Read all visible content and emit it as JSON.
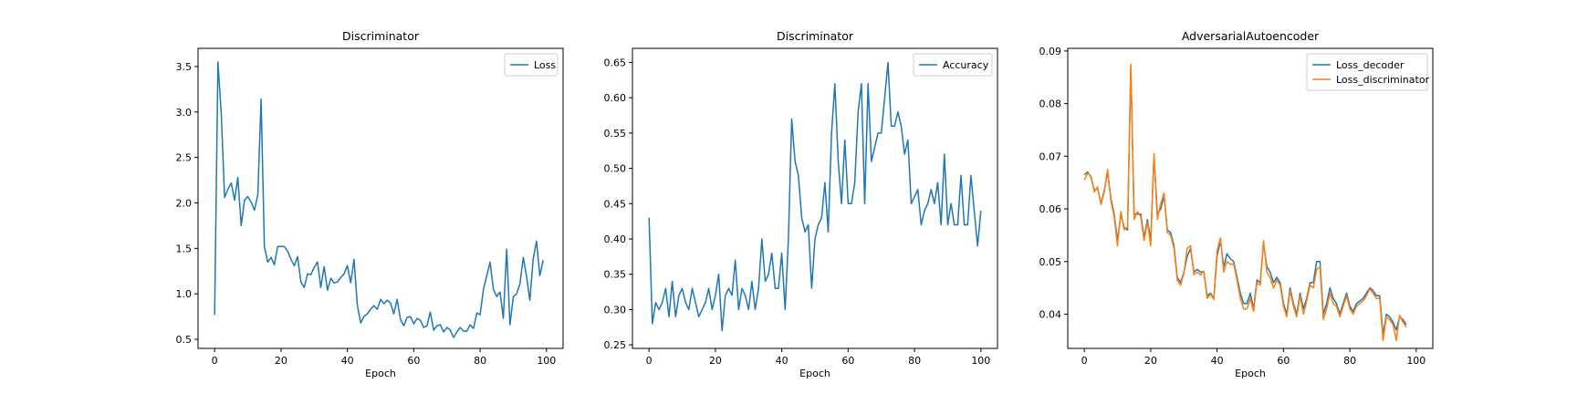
{
  "colors": {
    "series_1": "#1f77b4",
    "series_2": "#ff7f0e",
    "axes": "#000000",
    "legend_border": "#cccccc",
    "background": "#ffffff"
  },
  "chart_data": [
    {
      "type": "line",
      "title": "Discriminator",
      "xlabel": "Epoch",
      "ylabel": "",
      "xlim": [
        -5,
        105
      ],
      "ylim": [
        0.4,
        3.7
      ],
      "xticks": [
        0,
        20,
        40,
        60,
        80,
        100
      ],
      "yticks": [
        0.5,
        1.0,
        1.5,
        2.0,
        2.5,
        3.0,
        3.5
      ],
      "ytick_labels": [
        "0.5",
        "1.0",
        "1.5",
        "2.0",
        "2.5",
        "3.0",
        "3.5"
      ],
      "grid": false,
      "legend": "top-right",
      "series": [
        {
          "name": "Loss",
          "color": "#1f77b4",
          "values": [
            0.77,
            3.55,
            2.97,
            2.06,
            2.15,
            2.22,
            2.03,
            2.28,
            1.75,
            2.03,
            2.07,
            2.01,
            1.92,
            2.09,
            3.14,
            1.52,
            1.35,
            1.4,
            1.32,
            1.52,
            1.52,
            1.52,
            1.47,
            1.38,
            1.31,
            1.41,
            1.13,
            1.07,
            1.22,
            1.21,
            1.29,
            1.35,
            1.07,
            1.3,
            1.04,
            1.17,
            1.12,
            1.13,
            1.18,
            1.22,
            1.31,
            1.12,
            1.38,
            0.88,
            0.68,
            0.75,
            0.78,
            0.83,
            0.87,
            0.83,
            0.94,
            0.89,
            0.93,
            0.9,
            0.78,
            0.94,
            0.72,
            0.65,
            0.74,
            0.75,
            0.67,
            0.73,
            0.71,
            0.63,
            0.65,
            0.8,
            0.6,
            0.65,
            0.66,
            0.58,
            0.63,
            0.6,
            0.52,
            0.58,
            0.63,
            0.59,
            0.59,
            0.66,
            0.62,
            0.79,
            0.77,
            1.05,
            1.2,
            1.35,
            1.05,
            0.97,
            1.02,
            0.73,
            1.49,
            0.66,
            0.97,
            1.0,
            1.11,
            1.4,
            1.19,
            0.93,
            1.39,
            1.58,
            1.2,
            1.37
          ]
        }
      ]
    },
    {
      "type": "line",
      "title": "Discriminator",
      "xlabel": "Epoch",
      "ylabel": "",
      "xlim": [
        -5,
        105
      ],
      "ylim": [
        0.245,
        0.67
      ],
      "xticks": [
        0,
        20,
        40,
        60,
        80,
        100
      ],
      "yticks": [
        0.25,
        0.3,
        0.35,
        0.4,
        0.45,
        0.5,
        0.55,
        0.6,
        0.65
      ],
      "ytick_labels": [
        "0.25",
        "0.30",
        "0.35",
        "0.40",
        "0.45",
        "0.50",
        "0.55",
        "0.60",
        "0.65"
      ],
      "grid": false,
      "legend": "top-right",
      "series": [
        {
          "name": "Accuracy",
          "color": "#1f77b4",
          "values": [
            0.43,
            0.28,
            0.31,
            0.3,
            0.31,
            0.33,
            0.29,
            0.34,
            0.29,
            0.32,
            0.33,
            0.31,
            0.3,
            0.33,
            0.31,
            0.29,
            0.3,
            0.31,
            0.33,
            0.3,
            0.32,
            0.35,
            0.27,
            0.32,
            0.33,
            0.32,
            0.37,
            0.3,
            0.33,
            0.32,
            0.3,
            0.34,
            0.3,
            0.33,
            0.4,
            0.34,
            0.35,
            0.38,
            0.33,
            0.33,
            0.38,
            0.3,
            0.4,
            0.57,
            0.51,
            0.49,
            0.43,
            0.41,
            0.42,
            0.33,
            0.4,
            0.42,
            0.43,
            0.48,
            0.41,
            0.55,
            0.62,
            0.51,
            0.45,
            0.54,
            0.45,
            0.45,
            0.48,
            0.58,
            0.62,
            0.45,
            0.62,
            0.51,
            0.53,
            0.55,
            0.55,
            0.6,
            0.65,
            0.56,
            0.56,
            0.58,
            0.56,
            0.52,
            0.54,
            0.45,
            0.46,
            0.47,
            0.42,
            0.44,
            0.45,
            0.47,
            0.45,
            0.48,
            0.42,
            0.52,
            0.42,
            0.45,
            0.42,
            0.42,
            0.49,
            0.42,
            0.42,
            0.49,
            0.44,
            0.39,
            0.44
          ]
        }
      ]
    },
    {
      "type": "line",
      "title": "AdversarialAutoencoder",
      "xlabel": "Epoch",
      "ylabel": "",
      "xlim": [
        -5,
        105
      ],
      "ylim": [
        0.0335,
        0.0905
      ],
      "xticks": [
        0,
        20,
        40,
        60,
        80,
        100
      ],
      "yticks": [
        0.04,
        0.05,
        0.06,
        0.07,
        0.08,
        0.09
      ],
      "ytick_labels": [
        "0.04",
        "0.05",
        "0.06",
        "0.07",
        "0.08",
        "0.09"
      ],
      "grid": false,
      "legend": "top-right",
      "series": [
        {
          "name": "Loss_decoder",
          "color": "#1f77b4",
          "values": [
            0.0665,
            0.067,
            0.066,
            0.0635,
            0.064,
            0.061,
            0.0635,
            0.067,
            0.062,
            0.059,
            0.054,
            0.059,
            0.0565,
            0.056,
            0.087,
            0.059,
            0.059,
            0.059,
            0.0545,
            0.058,
            0.054,
            0.07,
            0.059,
            0.06,
            0.0625,
            0.056,
            0.0555,
            0.053,
            0.047,
            0.046,
            0.048,
            0.051,
            0.0525,
            0.048,
            0.0485,
            0.048,
            0.048,
            0.0435,
            0.044,
            0.043,
            0.051,
            0.054,
            0.049,
            0.0515,
            0.0505,
            0.05,
            0.047,
            0.044,
            0.042,
            0.042,
            0.044,
            0.041,
            0.0465,
            0.046,
            0.0535,
            0.049,
            0.048,
            0.046,
            0.047,
            0.046,
            0.042,
            0.04,
            0.045,
            0.042,
            0.04,
            0.044,
            0.041,
            0.043,
            0.046,
            0.046,
            0.05,
            0.05,
            0.04,
            0.042,
            0.045,
            0.043,
            0.042,
            0.04,
            0.042,
            0.044,
            0.0415,
            0.0405,
            0.042,
            0.0425,
            0.043,
            0.044,
            0.045,
            0.0445,
            0.0435,
            0.0435,
            0.036,
            0.04,
            0.0395,
            0.0385,
            0.037,
            0.0395,
            0.039,
            0.038
          ]
        },
        {
          "name": "Loss_discriminator",
          "color": "#ff7f0e",
          "values": [
            0.0655,
            0.0668,
            0.0662,
            0.0632,
            0.0642,
            0.0608,
            0.0632,
            0.0675,
            0.0615,
            0.0585,
            0.053,
            0.0595,
            0.056,
            0.0565,
            0.0875,
            0.058,
            0.0595,
            0.0585,
            0.054,
            0.0575,
            0.053,
            0.0705,
            0.058,
            0.061,
            0.063,
            0.0555,
            0.055,
            0.0525,
            0.0465,
            0.0455,
            0.0478,
            0.0525,
            0.053,
            0.0475,
            0.048,
            0.0475,
            0.0482,
            0.043,
            0.0438,
            0.0428,
            0.052,
            0.0545,
            0.048,
            0.05,
            0.0495,
            0.0495,
            0.0465,
            0.043,
            0.041,
            0.041,
            0.043,
            0.0405,
            0.046,
            0.0455,
            0.054,
            0.048,
            0.047,
            0.045,
            0.0465,
            0.0455,
            0.0415,
            0.0395,
            0.0445,
            0.0415,
            0.0395,
            0.0435,
            0.04,
            0.0425,
            0.0455,
            0.045,
            0.0485,
            0.049,
            0.039,
            0.041,
            0.044,
            0.042,
            0.0415,
            0.0395,
            0.0415,
            0.0435,
            0.041,
            0.04,
            0.0415,
            0.042,
            0.0425,
            0.0435,
            0.0448,
            0.044,
            0.043,
            0.043,
            0.035,
            0.0395,
            0.039,
            0.038,
            0.035,
            0.0398,
            0.0385,
            0.0375
          ]
        }
      ]
    }
  ]
}
